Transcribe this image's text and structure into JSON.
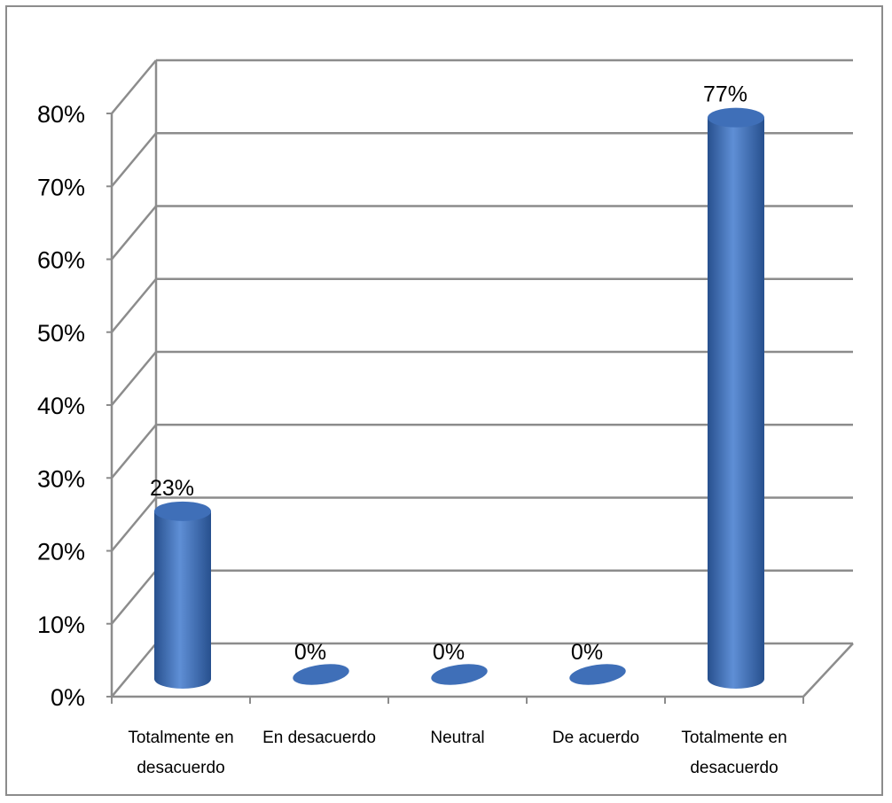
{
  "chart_data": {
    "type": "bar",
    "style": "3d-cylinder",
    "categories": [
      [
        "Totalmente en",
        "desacuerdo"
      ],
      [
        "En desacuerdo"
      ],
      [
        "Neutral"
      ],
      [
        "De acuerdo"
      ],
      [
        "Totalmente en",
        "desacuerdo"
      ]
    ],
    "values": [
      23,
      0,
      0,
      0,
      77
    ],
    "data_labels": [
      "23%",
      "0%",
      "0%",
      "0%",
      "77%"
    ],
    "y_ticks": [
      0,
      10,
      20,
      30,
      40,
      50,
      60,
      70,
      80
    ],
    "y_tick_labels": [
      "0%",
      "10%",
      "20%",
      "30%",
      "40%",
      "50%",
      "60%",
      "70%",
      "80%"
    ],
    "ylim": [
      0,
      80
    ],
    "grid": true,
    "legend": "none",
    "title": "",
    "xlabel": "",
    "ylabel": "",
    "colors": {
      "bar_light": "#5f8fd6",
      "bar_mid": "#3f6fb8",
      "bar_dark": "#27508e",
      "grid": "#8c8c8c"
    }
  }
}
